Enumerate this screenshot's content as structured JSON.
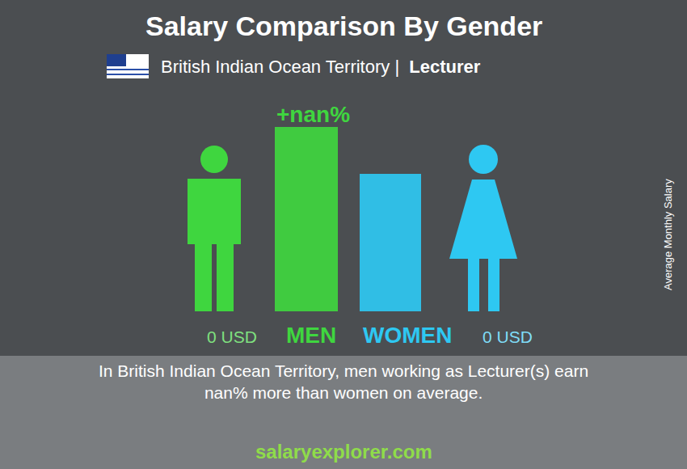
{
  "chart_data": {
    "type": "bar",
    "title": "Salary Comparison By Gender",
    "subtitle": "British Indian Ocean Territory | Lecturer",
    "y_label": "Average Monthly Salary",
    "categories": [
      "MEN",
      "WOMEN"
    ],
    "values": [
      0,
      0
    ],
    "value_labels": [
      "0 USD",
      "0 USD"
    ],
    "colors": [
      "#3fd63f",
      "#2ec8f2"
    ],
    "data_labels": true,
    "tick_labels": false,
    "annotations": [
      {
        "text": "+nan%"
      },
      {
        "text": "In British Indian Ocean Territory, men working as Lecturer(s) earn nan% more than women on average."
      },
      {
        "text": "salaryexplorer.com"
      }
    ]
  }
}
